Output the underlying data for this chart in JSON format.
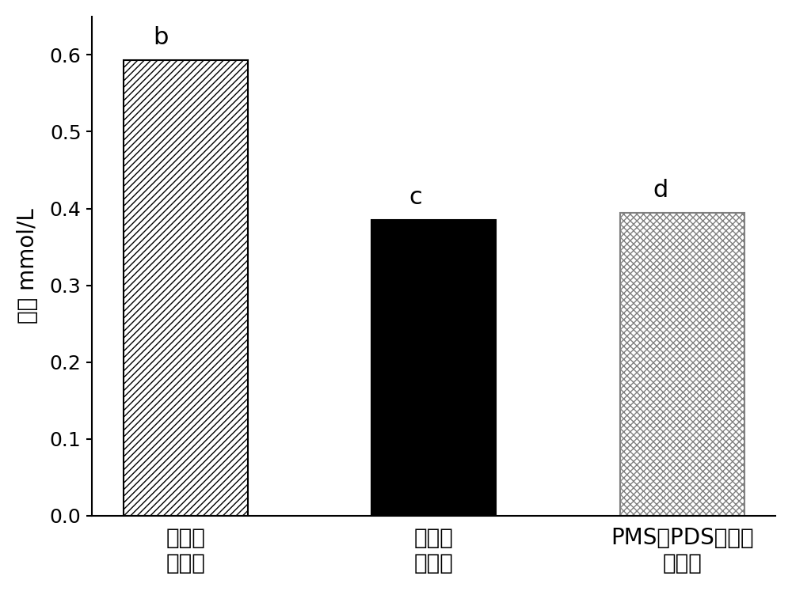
{
  "categories": [
    "加醂前\n测定値",
    "加醂后\n测定値",
    "PMS与PDS浓度和\n理论値"
  ],
  "values": [
    0.593,
    0.385,
    0.394
  ],
  "labels": [
    "b",
    "c",
    "d"
  ],
  "ylabel": "浓度 mmol/L",
  "ylim": [
    0,
    0.65
  ],
  "yticks": [
    0.0,
    0.1,
    0.2,
    0.3,
    0.4,
    0.5,
    0.6
  ],
  "bar_colors": [
    "white",
    "black",
    "white"
  ],
  "bar_edgecolors": [
    "black",
    "black",
    "gray"
  ],
  "hatch_patterns": [
    "////",
    "",
    "xxxx"
  ],
  "label_fontsize": 20,
  "tick_fontsize": 18,
  "ylabel_fontsize": 20,
  "annotation_fontsize": 22,
  "figsize": [
    10.0,
    7.47
  ],
  "dpi": 100,
  "bar_width": 0.5
}
